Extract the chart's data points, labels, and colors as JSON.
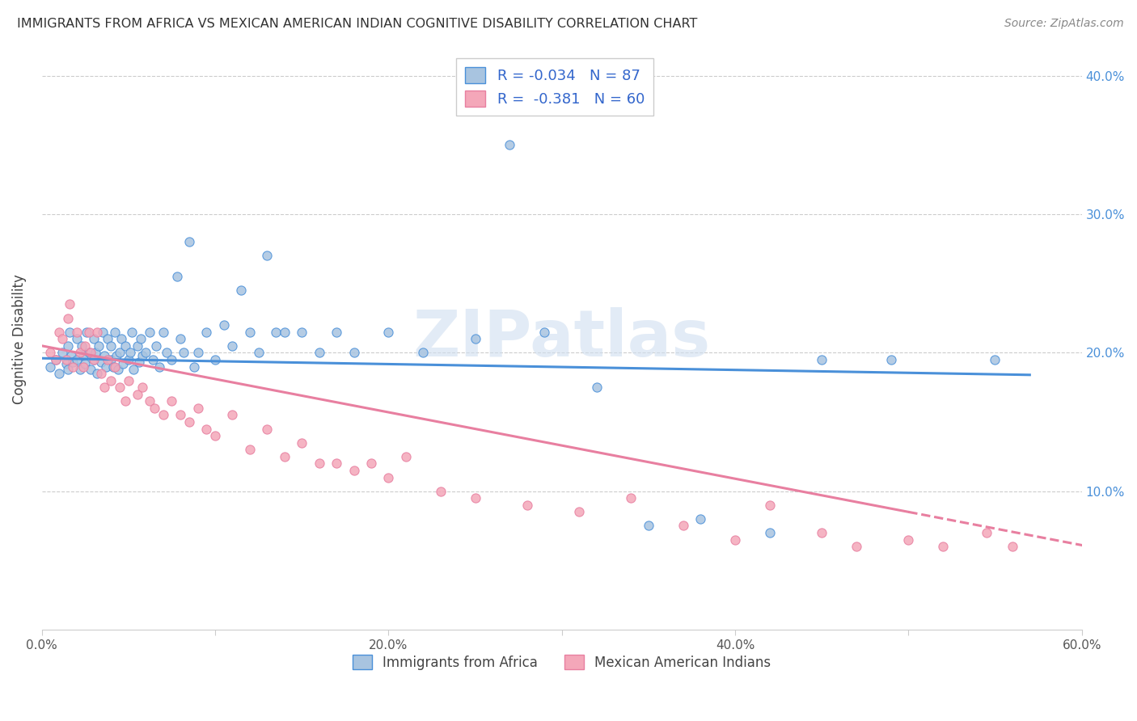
{
  "title": "IMMIGRANTS FROM AFRICA VS MEXICAN AMERICAN INDIAN COGNITIVE DISABILITY CORRELATION CHART",
  "source": "Source: ZipAtlas.com",
  "ylabel": "Cognitive Disability",
  "xlim": [
    0.0,
    0.6
  ],
  "ylim": [
    0.0,
    0.42
  ],
  "xticks": [
    0.0,
    0.1,
    0.2,
    0.3,
    0.4,
    0.5,
    0.6
  ],
  "xticklabels": [
    "0.0%",
    "",
    "20.0%",
    "",
    "40.0%",
    "",
    "60.0%"
  ],
  "yticks": [
    0.0,
    0.1,
    0.2,
    0.3,
    0.4
  ],
  "blue_R": -0.034,
  "blue_N": 87,
  "pink_R": -0.381,
  "pink_N": 60,
  "blue_color": "#a8c4e0",
  "pink_color": "#f4a7b9",
  "blue_line_color": "#4a90d9",
  "pink_line_color": "#e87fa0",
  "watermark": "ZIPatlas",
  "legend_label_blue": "Immigrants from Africa",
  "legend_label_pink": "Mexican American Indians",
  "blue_scatter_x": [
    0.005,
    0.008,
    0.01,
    0.012,
    0.014,
    0.015,
    0.015,
    0.016,
    0.017,
    0.018,
    0.02,
    0.02,
    0.022,
    0.023,
    0.024,
    0.025,
    0.026,
    0.027,
    0.028,
    0.03,
    0.03,
    0.031,
    0.032,
    0.033,
    0.034,
    0.035,
    0.036,
    0.037,
    0.038,
    0.04,
    0.04,
    0.041,
    0.042,
    0.043,
    0.044,
    0.045,
    0.046,
    0.047,
    0.048,
    0.05,
    0.051,
    0.052,
    0.053,
    0.055,
    0.056,
    0.057,
    0.058,
    0.06,
    0.062,
    0.064,
    0.066,
    0.068,
    0.07,
    0.072,
    0.075,
    0.078,
    0.08,
    0.082,
    0.085,
    0.088,
    0.09,
    0.095,
    0.1,
    0.105,
    0.11,
    0.115,
    0.12,
    0.125,
    0.13,
    0.135,
    0.14,
    0.15,
    0.16,
    0.17,
    0.18,
    0.2,
    0.22,
    0.25,
    0.27,
    0.29,
    0.32,
    0.35,
    0.38,
    0.42,
    0.45,
    0.49,
    0.55
  ],
  "blue_scatter_y": [
    0.19,
    0.195,
    0.185,
    0.2,
    0.192,
    0.188,
    0.205,
    0.215,
    0.198,
    0.193,
    0.195,
    0.21,
    0.188,
    0.205,
    0.198,
    0.192,
    0.215,
    0.2,
    0.188,
    0.195,
    0.21,
    0.2,
    0.185,
    0.205,
    0.193,
    0.215,
    0.198,
    0.19,
    0.21,
    0.195,
    0.205,
    0.19,
    0.215,
    0.198,
    0.188,
    0.2,
    0.21,
    0.192,
    0.205,
    0.195,
    0.2,
    0.215,
    0.188,
    0.205,
    0.193,
    0.21,
    0.198,
    0.2,
    0.215,
    0.195,
    0.205,
    0.19,
    0.215,
    0.2,
    0.195,
    0.255,
    0.21,
    0.2,
    0.28,
    0.19,
    0.2,
    0.215,
    0.195,
    0.22,
    0.205,
    0.245,
    0.215,
    0.2,
    0.27,
    0.215,
    0.215,
    0.215,
    0.2,
    0.215,
    0.2,
    0.215,
    0.2,
    0.21,
    0.35,
    0.215,
    0.175,
    0.075,
    0.08,
    0.07,
    0.195,
    0.195,
    0.195
  ],
  "pink_scatter_x": [
    0.005,
    0.008,
    0.01,
    0.012,
    0.014,
    0.015,
    0.016,
    0.018,
    0.02,
    0.022,
    0.024,
    0.025,
    0.027,
    0.028,
    0.03,
    0.032,
    0.034,
    0.036,
    0.038,
    0.04,
    0.042,
    0.045,
    0.048,
    0.05,
    0.055,
    0.058,
    0.062,
    0.065,
    0.07,
    0.075,
    0.08,
    0.085,
    0.09,
    0.095,
    0.1,
    0.11,
    0.12,
    0.13,
    0.14,
    0.15,
    0.16,
    0.17,
    0.18,
    0.19,
    0.2,
    0.21,
    0.23,
    0.25,
    0.28,
    0.31,
    0.34,
    0.37,
    0.4,
    0.42,
    0.45,
    0.47,
    0.5,
    0.52,
    0.545,
    0.56
  ],
  "pink_scatter_y": [
    0.2,
    0.195,
    0.215,
    0.21,
    0.195,
    0.225,
    0.235,
    0.19,
    0.215,
    0.2,
    0.19,
    0.205,
    0.215,
    0.2,
    0.195,
    0.215,
    0.185,
    0.175,
    0.195,
    0.18,
    0.19,
    0.175,
    0.165,
    0.18,
    0.17,
    0.175,
    0.165,
    0.16,
    0.155,
    0.165,
    0.155,
    0.15,
    0.16,
    0.145,
    0.14,
    0.155,
    0.13,
    0.145,
    0.125,
    0.135,
    0.12,
    0.12,
    0.115,
    0.12,
    0.11,
    0.125,
    0.1,
    0.095,
    0.09,
    0.085,
    0.095,
    0.075,
    0.065,
    0.09,
    0.07,
    0.06,
    0.065,
    0.06,
    0.07,
    0.06
  ]
}
